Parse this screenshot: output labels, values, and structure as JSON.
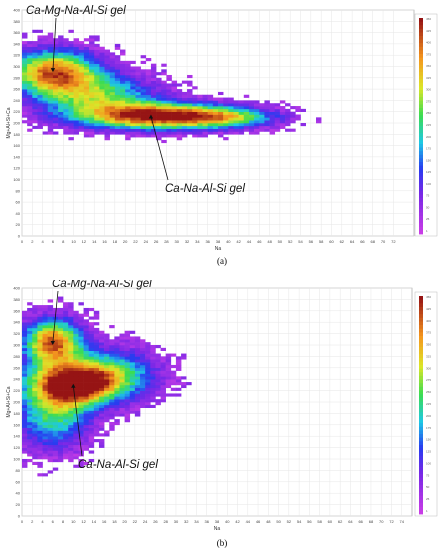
{
  "chart_data": [
    {
      "type": "heatmap",
      "panel_label": "(a)",
      "xlabel": "Na",
      "ylabel": "Mg+Al+Si+Ca",
      "xlim": [
        0,
        76
      ],
      "ylim": [
        0,
        400
      ],
      "x_ticks": [
        0,
        2,
        4,
        6,
        8,
        10,
        12,
        14,
        16,
        18,
        20,
        22,
        24,
        26,
        28,
        30,
        32,
        34,
        36,
        38,
        40,
        42,
        44,
        46,
        48,
        50,
        52,
        54,
        56,
        58,
        60,
        62,
        64,
        66,
        68,
        70,
        72
      ],
      "y_ticks": [
        0,
        20,
        40,
        60,
        80,
        100,
        120,
        140,
        160,
        180,
        200,
        220,
        240,
        260,
        280,
        300,
        320,
        340,
        360,
        380,
        400
      ],
      "clusters": [
        {
          "x": 6,
          "y": 292,
          "sx": 6,
          "sy": 26,
          "weight": 0.85
        },
        {
          "x": 14,
          "y": 250,
          "sx": 8,
          "sy": 26,
          "weight": 0.55
        },
        {
          "x": 26,
          "y": 213,
          "sx": 10,
          "sy": 16,
          "weight": 1.0
        },
        {
          "x": 40,
          "y": 210,
          "sx": 7,
          "sy": 12,
          "weight": 0.45
        }
      ],
      "annotations": [
        {
          "text": "Ca-Mg-Na-Al-Si gel",
          "x": 6,
          "y": 290
        },
        {
          "text": "Ca-Na-Al-Si gel",
          "x": 25,
          "y": 215
        }
      ],
      "colorbar_labels": [
        "450",
        "425",
        "400",
        "375",
        "350",
        "325",
        "300",
        "275",
        "250",
        "225",
        "200",
        "175",
        "150",
        "125",
        "100",
        "75",
        "50",
        "25",
        "1"
      ]
    },
    {
      "type": "heatmap",
      "panel_label": "(b)",
      "xlabel": "Na",
      "ylabel": "Mg+Al+Si+Ca",
      "xlim": [
        0,
        76
      ],
      "ylim": [
        0,
        400
      ],
      "x_ticks": [
        0,
        2,
        4,
        6,
        8,
        10,
        12,
        14,
        16,
        18,
        20,
        22,
        24,
        26,
        28,
        30,
        32,
        34,
        36,
        38,
        40,
        42,
        44,
        46,
        48,
        50,
        52,
        54,
        56,
        58,
        60,
        62,
        64,
        66,
        68,
        70,
        72,
        74
      ],
      "y_ticks": [
        0,
        20,
        40,
        60,
        80,
        100,
        120,
        140,
        160,
        180,
        200,
        220,
        240,
        260,
        280,
        300,
        320,
        340,
        360,
        380,
        400
      ],
      "clusters": [
        {
          "x": 6,
          "y": 305,
          "sx": 4,
          "sy": 28,
          "weight": 0.9
        },
        {
          "x": 10,
          "y": 232,
          "sx": 6,
          "sy": 26,
          "weight": 1.0
        },
        {
          "x": 18,
          "y": 250,
          "sx": 6,
          "sy": 30,
          "weight": 0.45
        },
        {
          "x": 6,
          "y": 175,
          "sx": 5,
          "sy": 40,
          "weight": 0.5
        }
      ],
      "annotations": [
        {
          "text": "Ca-Mg-Na-Al-Si gel",
          "x": 6,
          "y": 300
        },
        {
          "text": "Ca-Na-Al-Si gel",
          "x": 10,
          "y": 232
        }
      ],
      "colorbar_labels": [
        "450",
        "425",
        "400",
        "375",
        "350",
        "325",
        "300",
        "275",
        "250",
        "225",
        "200",
        "175",
        "150",
        "125",
        "100",
        "75",
        "50",
        "25",
        "1"
      ]
    }
  ]
}
